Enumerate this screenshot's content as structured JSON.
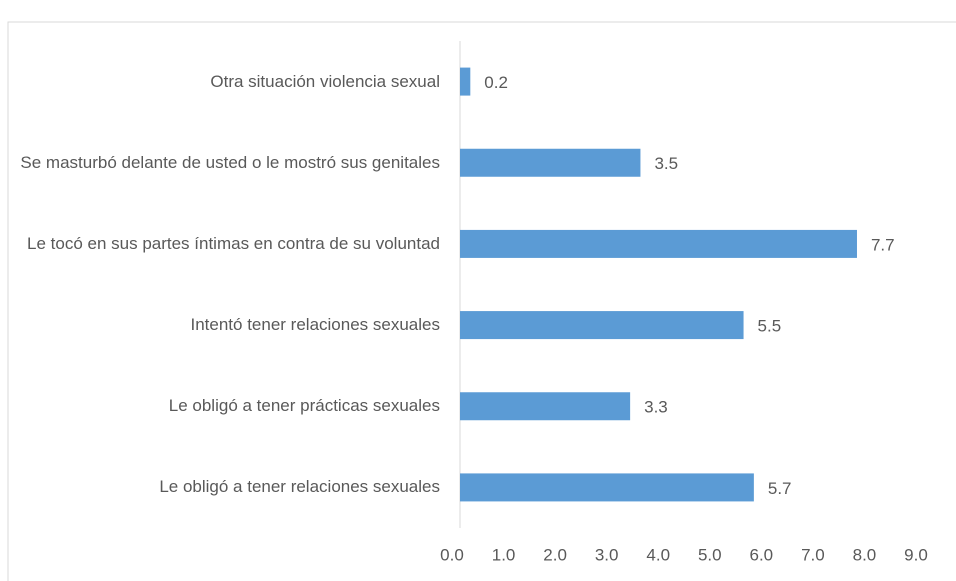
{
  "chart_data": {
    "type": "barh",
    "categories": [
      "Otra situación violencia sexual",
      "Se masturbó delante de usted o le mostró sus genitales",
      "Le tocó en sus partes íntimas en contra de su voluntad",
      "Intentó tener relaciones sexuales",
      "Le obligó a tener prácticas sexuales",
      "Le obligó a tener relaciones sexuales"
    ],
    "values": [
      0.2,
      3.5,
      7.7,
      5.5,
      3.3,
      5.7
    ],
    "color": "#5b9bd5",
    "xlim": [
      0,
      9
    ],
    "xticks": [
      {
        "value": 0,
        "label": "0.0"
      },
      {
        "value": 1,
        "label": "1.0"
      },
      {
        "value": 2,
        "label": "2.0"
      },
      {
        "value": 3,
        "label": "3.0"
      },
      {
        "value": 4,
        "label": "4.0"
      },
      {
        "value": 5,
        "label": "5.0"
      },
      {
        "value": 6,
        "label": "6.0"
      },
      {
        "value": 7,
        "label": "7.0"
      },
      {
        "value": 8,
        "label": "8.0"
      },
      {
        "value": 9,
        "label": "9.0"
      }
    ],
    "grid": false
  }
}
